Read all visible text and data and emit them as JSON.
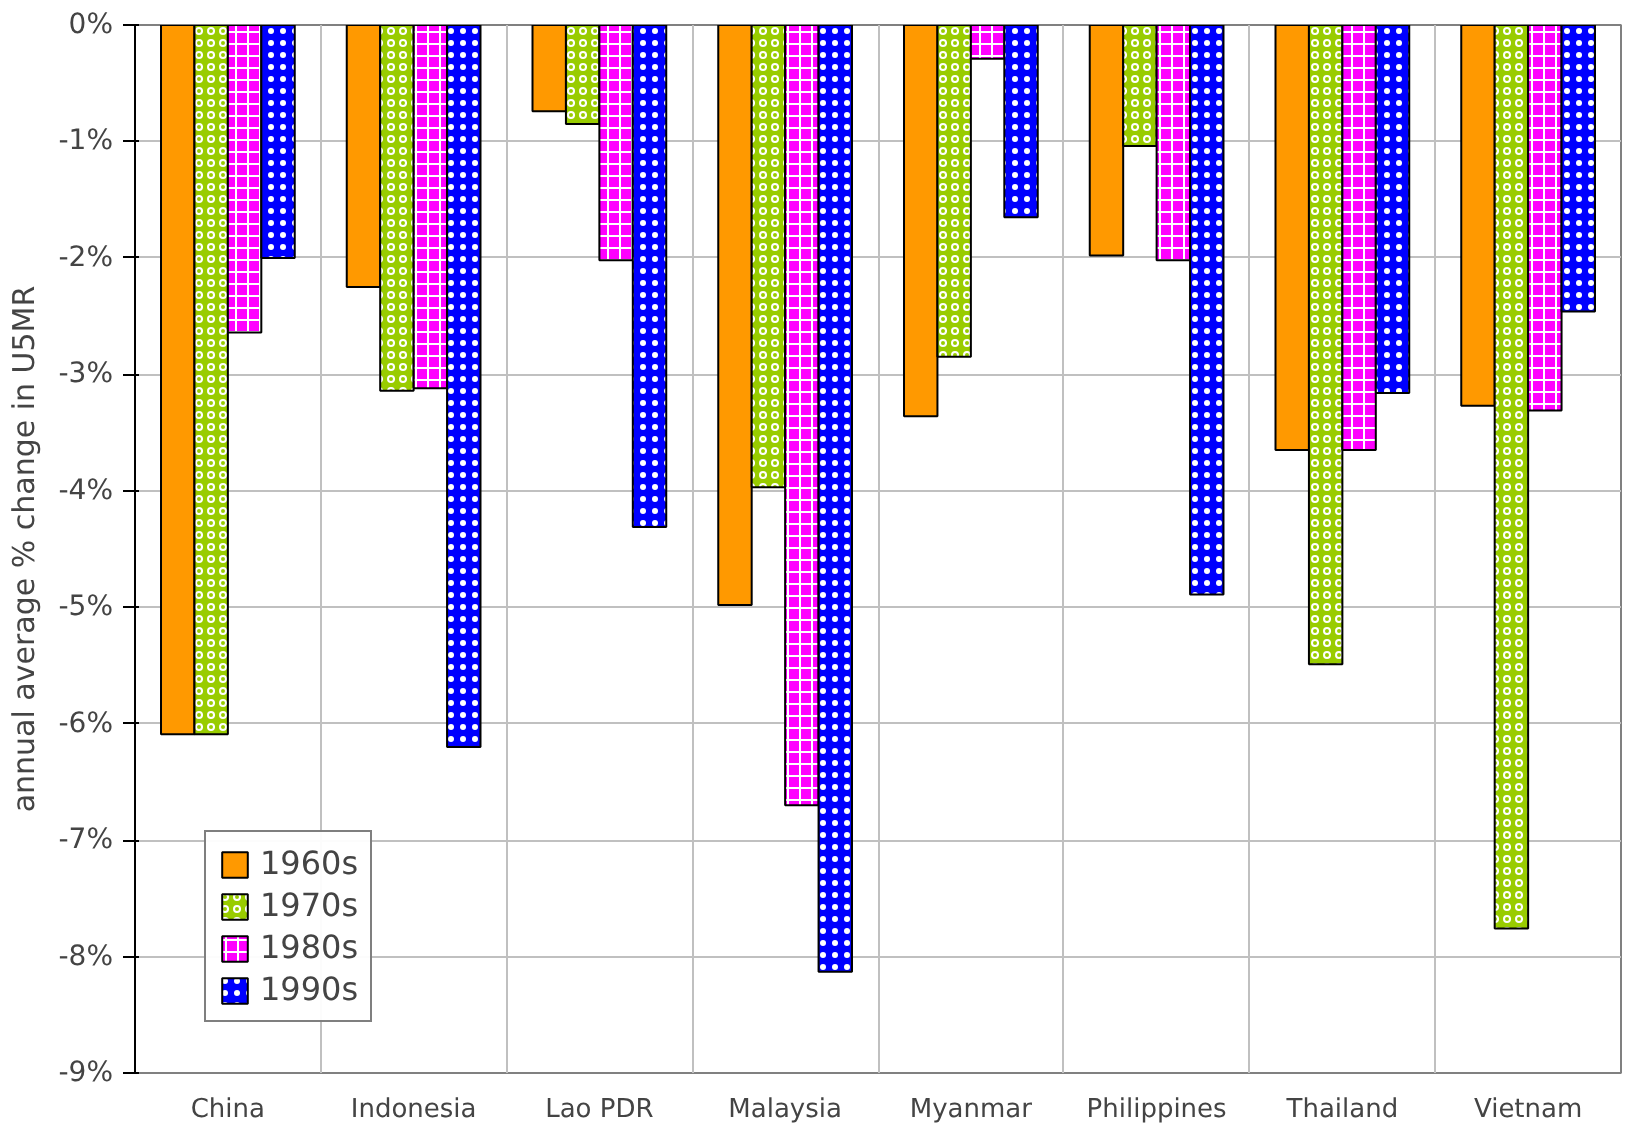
{
  "chart_data": {
    "type": "bar",
    "ylabel": "annual average % change in U5MR",
    "categories": [
      "China",
      "Indonesia",
      "Lao PDR",
      "Malaysia",
      "Myanmar",
      "Philippines",
      "Thailand",
      "Vietnam"
    ],
    "series": [
      {
        "name": "1960s",
        "color": "#ff9900",
        "values": [
          -6.09,
          -2.25,
          -0.74,
          -4.98,
          -3.36,
          -1.98,
          -3.65,
          -3.27
        ]
      },
      {
        "name": "1970s",
        "color": "#99cc00",
        "values": [
          -6.09,
          -3.14,
          -0.85,
          -3.97,
          -2.85,
          -1.04,
          -5.49,
          -7.76
        ]
      },
      {
        "name": "1980s",
        "color": "#ff00ff",
        "values": [
          -2.64,
          -3.12,
          -2.02,
          -6.7,
          -0.29,
          -2.02,
          -3.65,
          -3.31
        ]
      },
      {
        "name": "1990s",
        "color": "#0000ff",
        "values": [
          -2.0,
          -6.2,
          -4.31,
          -8.13,
          -1.65,
          -4.89,
          -3.16,
          -2.46
        ]
      }
    ],
    "ylim": [
      -9,
      0
    ],
    "yticks": [
      {
        "value": 0,
        "label": "0%"
      },
      {
        "value": -1,
        "label": "-1%"
      },
      {
        "value": -2,
        "label": "-2%"
      },
      {
        "value": -3,
        "label": "-3%"
      },
      {
        "value": -4,
        "label": "-4%"
      },
      {
        "value": -5,
        "label": "-5%"
      },
      {
        "value": -6,
        "label": "-6%"
      },
      {
        "value": -7,
        "label": "-7%"
      },
      {
        "value": -8,
        "label": "-8%"
      },
      {
        "value": -9,
        "label": "-9%"
      }
    ],
    "grid": true,
    "legend": "bottom left"
  }
}
